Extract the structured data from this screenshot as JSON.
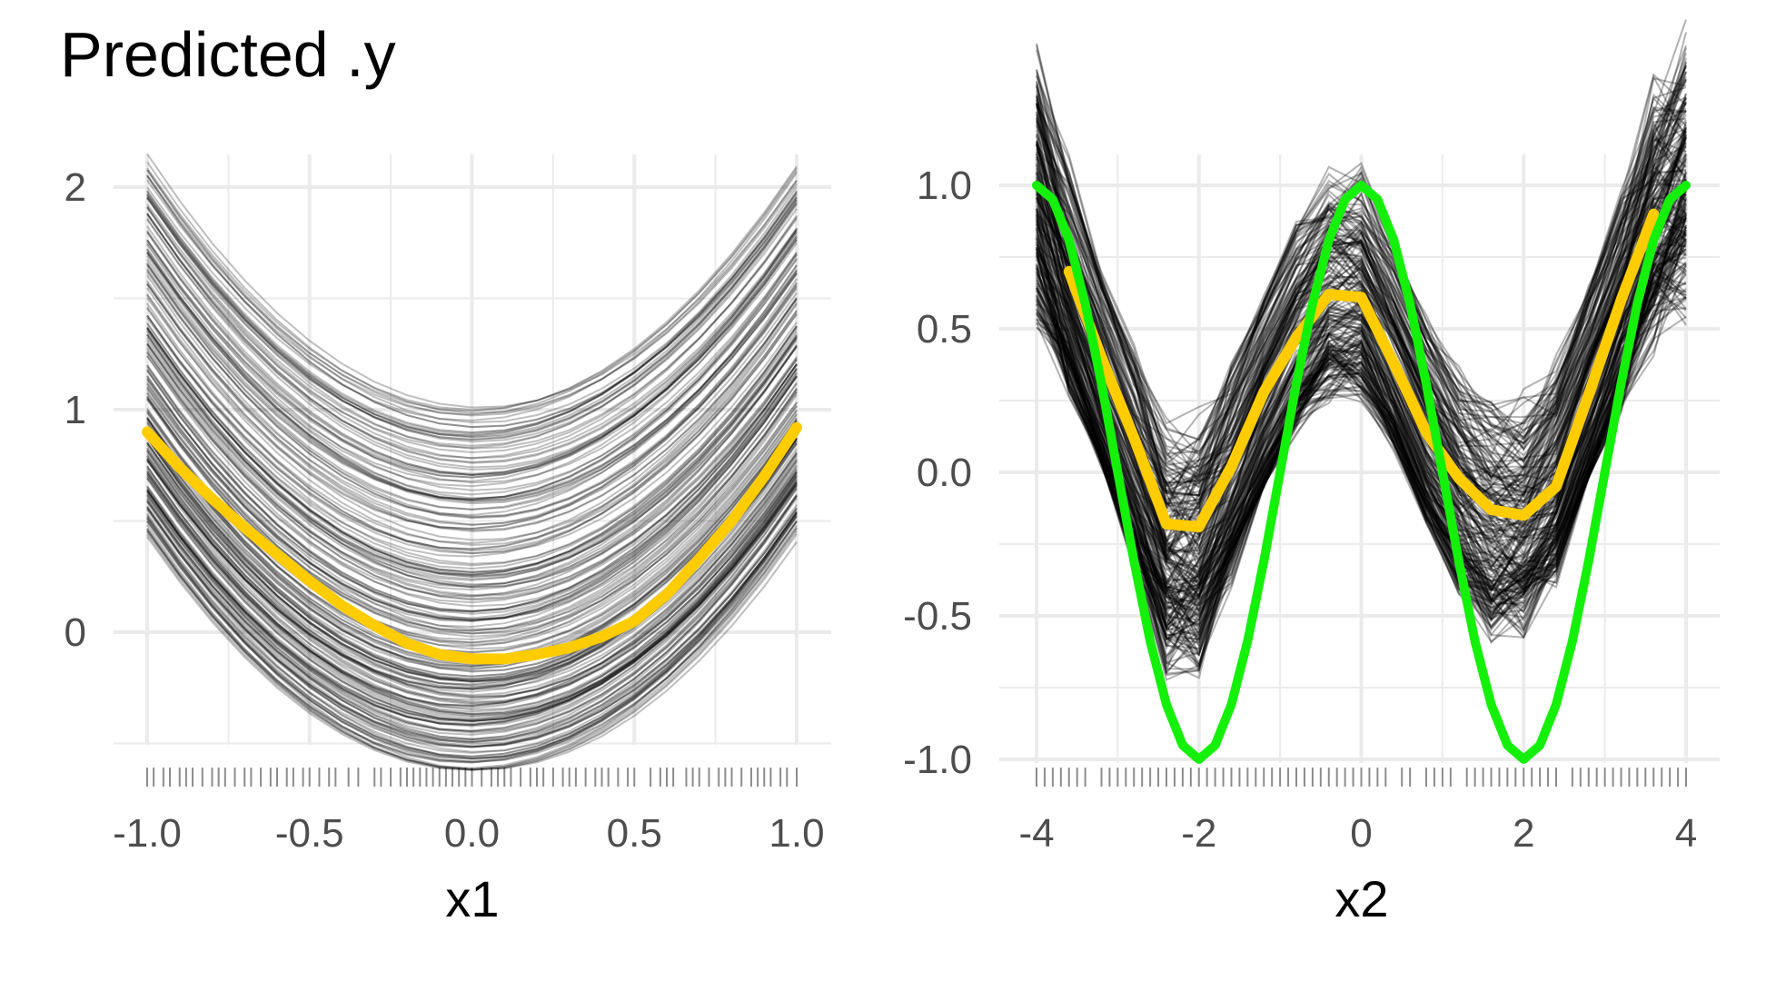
{
  "title": "Predicted .y",
  "colors": {
    "ice_line": "#000000",
    "pd_line": "#FFCC00",
    "true_line": "#14F00A",
    "grid": "#EBEBEB",
    "rug": "#000000"
  },
  "chart_data": [
    {
      "type": "line",
      "panel": "left",
      "xlabel": "x1",
      "ylabel": "",
      "xlim": [
        -1.0,
        1.0
      ],
      "ylim": [
        -0.5,
        2.0
      ],
      "x_ticks": [
        -1.0,
        -0.5,
        0.0,
        0.5,
        1.0
      ],
      "x_tick_labels": [
        "-1.0",
        "-0.5",
        "0.0",
        "0.5",
        "1.0"
      ],
      "y_ticks": [
        0,
        1,
        2
      ],
      "y_tick_labels": [
        "0",
        "1",
        "2"
      ],
      "grid": true,
      "ice_curves": {
        "count": 220,
        "x": [
          -1.0,
          -0.9,
          -0.8,
          -0.7,
          -0.6,
          -0.5,
          -0.4,
          -0.3,
          -0.2,
          -0.1,
          0.0,
          0.1,
          0.2,
          0.3,
          0.4,
          0.5,
          0.6,
          0.7,
          0.8,
          0.9,
          1.0
        ],
        "offset_range": [
          -0.62,
          1.01
        ],
        "shape": "quadratic"
      },
      "series": [
        {
          "role": "partial-dependence",
          "x": [
            -1.0,
            -0.9,
            -0.8,
            -0.7,
            -0.6,
            -0.5,
            -0.4,
            -0.3,
            -0.2,
            -0.1,
            0.0,
            0.1,
            0.2,
            0.3,
            0.4,
            0.5,
            0.6,
            0.7,
            0.8,
            0.9,
            1.0
          ],
          "values": [
            0.9,
            0.74,
            0.6,
            0.47,
            0.35,
            0.23,
            0.12,
            0.03,
            -0.05,
            -0.1,
            -0.12,
            -0.12,
            -0.1,
            -0.07,
            -0.02,
            0.05,
            0.17,
            0.33,
            0.5,
            0.7,
            0.92
          ]
        }
      ],
      "rug": [
        -1.0,
        -0.98,
        -0.95,
        -0.93,
        -0.9,
        -0.88,
        -0.86,
        -0.83,
        -0.8,
        -0.78,
        -0.76,
        -0.73,
        -0.7,
        -0.68,
        -0.65,
        -0.62,
        -0.6,
        -0.57,
        -0.55,
        -0.52,
        -0.5,
        -0.47,
        -0.44,
        -0.42,
        -0.38,
        -0.35,
        -0.3,
        -0.28,
        -0.25,
        -0.22,
        -0.2,
        -0.18,
        -0.16,
        -0.14,
        -0.12,
        -0.1,
        -0.08,
        -0.06,
        -0.04,
        -0.02,
        0.0,
        0.03,
        0.06,
        0.08,
        0.1,
        0.12,
        0.15,
        0.18,
        0.2,
        0.22,
        0.25,
        0.28,
        0.3,
        0.32,
        0.35,
        0.38,
        0.4,
        0.42,
        0.45,
        0.48,
        0.5,
        0.55,
        0.58,
        0.6,
        0.62,
        0.66,
        0.68,
        0.7,
        0.73,
        0.76,
        0.78,
        0.8,
        0.83,
        0.86,
        0.88,
        0.9,
        0.92,
        0.95,
        0.97,
        1.0
      ]
    },
    {
      "type": "line",
      "panel": "right",
      "xlabel": "x2",
      "ylabel": "",
      "xlim": [
        -4,
        4
      ],
      "ylim": [
        -1.0,
        1.0
      ],
      "x_ticks": [
        -4,
        -2,
        0,
        2,
        4
      ],
      "x_tick_labels": [
        "-4",
        "-2",
        "0",
        "2",
        "4"
      ],
      "y_ticks": [
        -1.0,
        -0.5,
        0.0,
        0.5,
        1.0
      ],
      "y_tick_labels": [
        "-1.0",
        "-0.5",
        "0.0",
        "0.5",
        "1.0"
      ],
      "grid": true,
      "ice_curves": {
        "count": 220,
        "x": [
          -4.0,
          -3.6,
          -3.2,
          -2.8,
          -2.4,
          -2.0,
          -1.6,
          -1.2,
          -0.8,
          -0.4,
          0.0,
          0.4,
          0.8,
          1.2,
          1.6,
          2.0,
          2.4,
          2.8,
          3.2,
          3.6,
          4.0
        ],
        "offset_range": [
          -0.3,
          0.45
        ],
        "shape": "w"
      },
      "series": [
        {
          "role": "partial-dependence",
          "x": [
            -3.6,
            -3.2,
            -2.8,
            -2.4,
            -2.0,
            -1.6,
            -1.2,
            -0.8,
            -0.4,
            0.0,
            0.4,
            0.8,
            1.2,
            1.6,
            2.0,
            2.4,
            2.8,
            3.2,
            3.6
          ],
          "values": [
            0.7,
            0.4,
            0.12,
            -0.18,
            -0.19,
            0.02,
            0.28,
            0.47,
            0.62,
            0.61,
            0.38,
            0.14,
            -0.02,
            -0.13,
            -0.15,
            -0.05,
            0.27,
            0.6,
            0.9
          ]
        },
        {
          "role": "true-function",
          "x": [
            -4.0,
            -3.8,
            -3.6,
            -3.4,
            -3.2,
            -3.0,
            -2.8,
            -2.6,
            -2.4,
            -2.2,
            -2.0,
            -1.8,
            -1.6,
            -1.4,
            -1.2,
            -1.0,
            -0.8,
            -0.6,
            -0.4,
            -0.2,
            0.0,
            0.2,
            0.4,
            0.6,
            0.8,
            1.0,
            1.2,
            1.4,
            1.6,
            1.8,
            2.0,
            2.2,
            2.4,
            2.6,
            2.8,
            3.0,
            3.2,
            3.4,
            3.6,
            3.8,
            4.0
          ],
          "values": [
            1.0,
            0.951,
            0.809,
            0.588,
            0.309,
            0.0,
            -0.309,
            -0.588,
            -0.809,
            -0.951,
            -1.0,
            -0.951,
            -0.809,
            -0.588,
            -0.309,
            0.0,
            0.309,
            0.588,
            0.809,
            0.951,
            1.0,
            0.951,
            0.809,
            0.588,
            0.309,
            0.0,
            -0.309,
            -0.588,
            -0.809,
            -0.951,
            -1.0,
            -0.951,
            -0.809,
            -0.588,
            -0.309,
            0.0,
            0.309,
            0.588,
            0.809,
            0.951,
            1.0
          ]
        }
      ],
      "rug": [
        -4.0,
        -3.9,
        -3.8,
        -3.7,
        -3.6,
        -3.5,
        -3.4,
        -3.2,
        -3.1,
        -3.0,
        -2.9,
        -2.8,
        -2.7,
        -2.6,
        -2.5,
        -2.4,
        -2.3,
        -2.2,
        -2.1,
        -2.0,
        -1.9,
        -1.8,
        -1.7,
        -1.6,
        -1.5,
        -1.4,
        -1.3,
        -1.2,
        -1.1,
        -1.0,
        -0.9,
        -0.8,
        -0.7,
        -0.6,
        -0.5,
        -0.4,
        -0.3,
        -0.2,
        -0.1,
        0.0,
        0.1,
        0.2,
        0.3,
        0.5,
        0.6,
        0.8,
        0.9,
        1.0,
        1.1,
        1.3,
        1.4,
        1.5,
        1.6,
        1.7,
        1.8,
        1.9,
        2.0,
        2.1,
        2.2,
        2.3,
        2.4,
        2.6,
        2.7,
        2.8,
        2.9,
        3.0,
        3.1,
        3.2,
        3.3,
        3.4,
        3.5,
        3.6,
        3.7,
        3.8,
        3.9,
        4.0
      ]
    }
  ]
}
